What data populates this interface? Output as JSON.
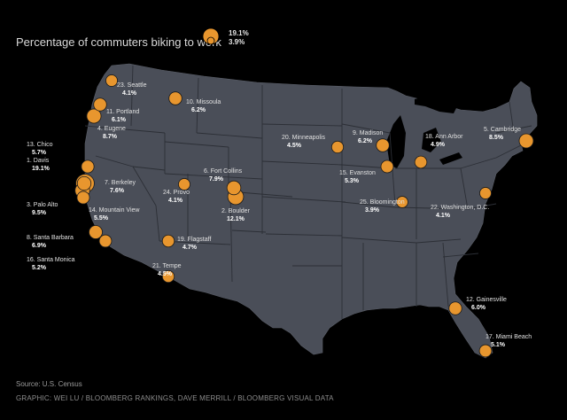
{
  "title": "Percentage of commuters biking to work",
  "legend": {
    "max": "19.1%",
    "min": "3.9%"
  },
  "source": "Source: U.S. Census",
  "credit": "GRAPHIC: WEI LU / BLOOMBERG RANKINGS, DAVE MERRILL / BLOOMBERG VISUAL DATA",
  "colors": {
    "background": "#000000",
    "land": "#4a4e58",
    "borders": "#2c2f36",
    "marker": "#e8962e"
  },
  "cities": [
    {
      "label": "1. Davis",
      "pct": "19.1%",
      "value": 19.1
    },
    {
      "label": "2. Boulder",
      "pct": "12.1%",
      "value": 12.1
    },
    {
      "label": "3. Palo Alto",
      "pct": "9.5%",
      "value": 9.5
    },
    {
      "label": "4. Eugene",
      "pct": "8.7%",
      "value": 8.7
    },
    {
      "label": "5. Cambridge",
      "pct": "8.5%",
      "value": 8.5
    },
    {
      "label": "6. Fort Collins",
      "pct": "7.9%",
      "value": 7.9
    },
    {
      "label": "7. Berkeley",
      "pct": "7.6%",
      "value": 7.6
    },
    {
      "label": "8. Santa Barbara",
      "pct": "6.9%",
      "value": 6.9
    },
    {
      "label": "9. Madison",
      "pct": "6.2%",
      "value": 6.2
    },
    {
      "label": "10. Missoula",
      "pct": "6.2%",
      "value": 6.2
    },
    {
      "label": "11. Portland",
      "pct": "6.1%",
      "value": 6.1
    },
    {
      "label": "12. Gainesville",
      "pct": "6.0%",
      "value": 6.0
    },
    {
      "label": "13. Chico",
      "pct": "5.7%",
      "value": 5.7
    },
    {
      "label": "14. Mountain View",
      "pct": "5.5%",
      "value": 5.5
    },
    {
      "label": "15. Evanston",
      "pct": "5.3%",
      "value": 5.3
    },
    {
      "label": "16. Santa Monica",
      "pct": "5.2%",
      "value": 5.2
    },
    {
      "label": "17. Miami Beach",
      "pct": "5.1%",
      "value": 5.1
    },
    {
      "label": "18. Ann Arbor",
      "pct": "4.9%",
      "value": 4.9
    },
    {
      "label": "19. Flagstaff",
      "pct": "4.7%",
      "value": 4.7
    },
    {
      "label": "20. Minneapolis",
      "pct": "4.5%",
      "value": 4.5
    },
    {
      "label": "21. Tempe",
      "pct": "4.5%",
      "value": 4.5
    },
    {
      "label": "22. Washington, D.C.",
      "pct": "4.1%",
      "value": 4.1
    },
    {
      "label": "23. Seattle",
      "pct": "4.1%",
      "value": 4.1
    },
    {
      "label": "24. Provo",
      "pct": "4.1%",
      "value": 4.1
    },
    {
      "label": "25. Bloomington",
      "pct": "3.9%",
      "value": 3.9
    }
  ]
}
